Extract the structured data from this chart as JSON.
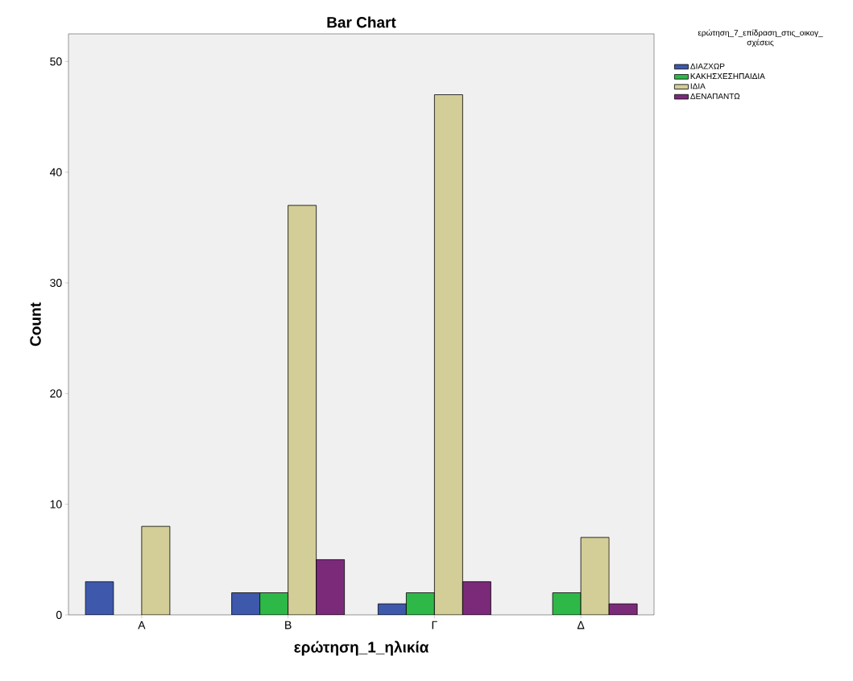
{
  "chart_data": {
    "type": "bar",
    "title": "Bar Chart",
    "xlabel": "ερώτηση_1_ηλικία",
    "ylabel": "Count",
    "legend_title": "ερώτηση_7_επίδραση_στις_οικογ_ σχέσεις",
    "categories": [
      "Α",
      "Β",
      "Γ",
      "Δ"
    ],
    "series": [
      {
        "name": "ΔΙΑΖΧΩΡ",
        "color": "#3e58ac",
        "values": [
          3,
          2,
          1,
          null
        ]
      },
      {
        "name": "ΚΑΚΗΣΧΕΣΗΠΑΙΔΙΑ",
        "color": "#2eb848",
        "values": [
          null,
          2,
          2,
          2
        ]
      },
      {
        "name": "ΙΔΙΑ",
        "color": "#d3ce97",
        "values": [
          8,
          37,
          47,
          7
        ]
      },
      {
        "name": "ΔΕΝΑΠΑΝΤΩ",
        "color": "#7b2a7a",
        "values": [
          null,
          5,
          3,
          1
        ]
      }
    ],
    "ylim": [
      0,
      52.5
    ],
    "yticks": [
      0,
      10,
      20,
      30,
      40,
      50
    ],
    "grid": false,
    "legend": "top right"
  }
}
